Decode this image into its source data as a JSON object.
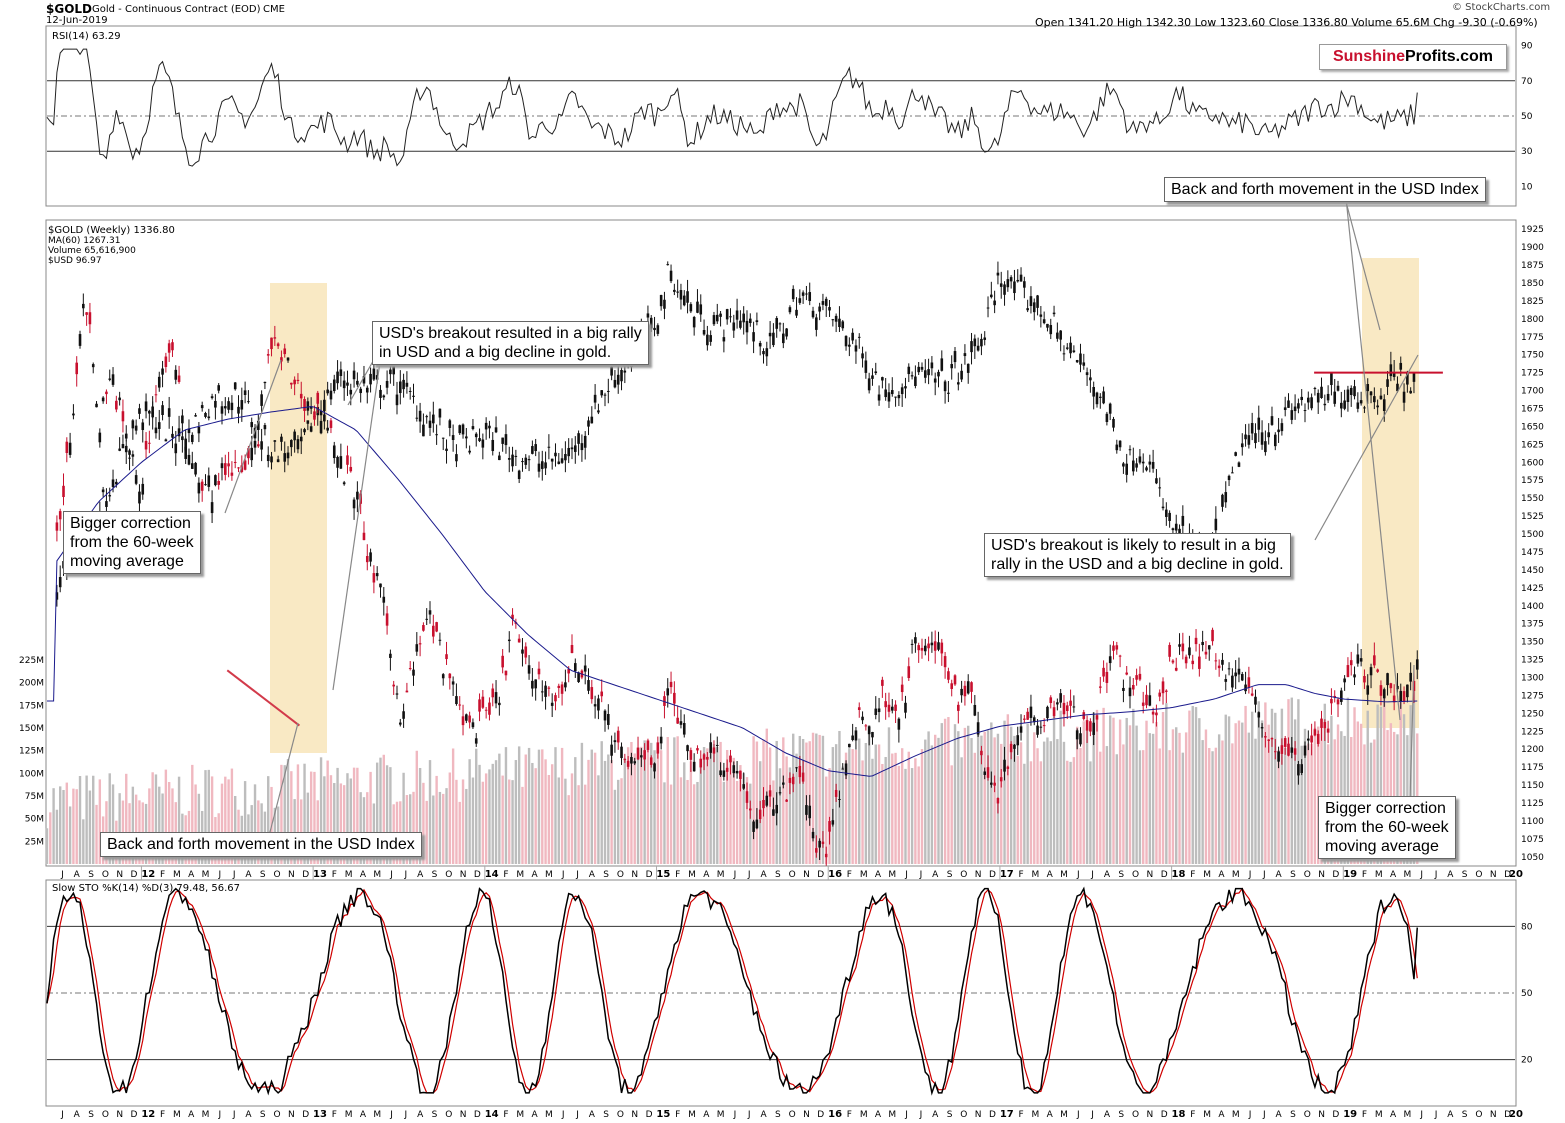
{
  "header": {
    "symbol": "$GOLD",
    "name": "Gold - Continuous Contract (EOD)",
    "exchange": "CME",
    "date": "12-Jun-2019",
    "ohlc": "Open 1341.20  High 1342.30  Low 1323.60  Close 1336.80  Volume 65.6M  Chg -9.30 (-0.69%)",
    "credit": "© StockCharts.com"
  },
  "brand": {
    "part1": "Sunshine",
    "part2": "Profits.com",
    "color1": "#c8102e"
  },
  "rsi_label": "RSI(14) 63.29",
  "legend": {
    "gold": "$GOLD (Weekly) 1336.80",
    "ma": "MA(60) 1267.31",
    "volume": "Volume 65,616,900",
    "usd": "$USD 96.97"
  },
  "sto_label": "Slow STO %K(14) %D(3) 79.48, 56.67",
  "annotations": {
    "a1": "USD's breakout resulted in a big rally\nin USD and a big decline in gold.",
    "a2": "Bigger correction\nfrom the 60-week\nmoving average",
    "a3": "Back and forth movement in the USD Index",
    "a4": "Back and forth movement in the USD Index",
    "a5": "USD's breakout is likely to result in a big\nrally in the USD and a big decline in gold.",
    "a6": "Bigger correction\nfrom the 60-week\nmoving average"
  },
  "chart_data": [
    {
      "type": "line",
      "title": "RSI(14)",
      "ylim": [
        0,
        100
      ],
      "yticks": [
        10,
        30,
        50,
        70,
        90
      ],
      "reference_lines": [
        30,
        50,
        70
      ],
      "last_value": 63.29
    },
    {
      "type": "candlestick",
      "title": "$GOLD (Weekly)",
      "ylim": [
        1040,
        1935
      ],
      "yticks": [
        1050,
        1075,
        1100,
        1125,
        1150,
        1175,
        1200,
        1225,
        1250,
        1275,
        1300,
        1325,
        1350,
        1375,
        1400,
        1425,
        1450,
        1475,
        1500,
        1525,
        1550,
        1575,
        1600,
        1625,
        1650,
        1675,
        1700,
        1725,
        1750,
        1775,
        1800,
        1825,
        1850,
        1875,
        1900,
        1925
      ],
      "volume_ticks": [
        "25M",
        "50M",
        "75M",
        "100M",
        "125M",
        "150M",
        "175M",
        "200M",
        "225M"
      ],
      "volume_ticks_value": [
        25,
        50,
        75,
        100,
        125,
        150,
        175,
        200,
        225
      ],
      "x_years": [
        "12",
        "13",
        "14",
        "15",
        "16",
        "17",
        "18",
        "19",
        "20"
      ],
      "months_2011": [
        "J",
        "A",
        "S",
        "O",
        "N",
        "D"
      ],
      "months": [
        "J",
        "F",
        "M",
        "A",
        "M",
        "J",
        "J",
        "A",
        "S",
        "O",
        "N",
        "D"
      ],
      "gold_path": [
        [
          2011.5,
          1480
        ],
        [
          2011.58,
          1620
        ],
        [
          2011.67,
          1850
        ],
        [
          2011.75,
          1650
        ],
        [
          2011.83,
          1720
        ],
        [
          2011.92,
          1620
        ],
        [
          2012.0,
          1560
        ],
        [
          2012.08,
          1700
        ],
        [
          2012.17,
          1760
        ],
        [
          2012.25,
          1650
        ],
        [
          2012.33,
          1580
        ],
        [
          2012.42,
          1560
        ],
        [
          2012.5,
          1600
        ],
        [
          2012.58,
          1580
        ],
        [
          2012.67,
          1620
        ],
        [
          2012.75,
          1770
        ],
        [
          2012.83,
          1740
        ],
        [
          2012.92,
          1700
        ],
        [
          2013.0,
          1670
        ],
        [
          2013.08,
          1670
        ],
        [
          2013.17,
          1590
        ],
        [
          2013.25,
          1560
        ],
        [
          2013.33,
          1460
        ],
        [
          2013.42,
          1390
        ],
        [
          2013.5,
          1250
        ],
        [
          2013.58,
          1310
        ],
        [
          2013.67,
          1390
        ],
        [
          2013.75,
          1330
        ],
        [
          2013.83,
          1270
        ],
        [
          2013.92,
          1230
        ],
        [
          2014.0,
          1240
        ],
        [
          2014.08,
          1270
        ],
        [
          2014.17,
          1380
        ],
        [
          2014.25,
          1300
        ],
        [
          2014.33,
          1300
        ],
        [
          2014.42,
          1260
        ],
        [
          2014.5,
          1330
        ],
        [
          2014.58,
          1300
        ],
        [
          2014.67,
          1270
        ],
        [
          2014.75,
          1210
        ],
        [
          2014.83,
          1170
        ],
        [
          2014.92,
          1200
        ],
        [
          2015.0,
          1190
        ],
        [
          2015.08,
          1290
        ],
        [
          2015.17,
          1210
        ],
        [
          2015.25,
          1190
        ],
        [
          2015.33,
          1200
        ],
        [
          2015.42,
          1180
        ],
        [
          2015.5,
          1160
        ],
        [
          2015.58,
          1090
        ],
        [
          2015.67,
          1130
        ],
        [
          2015.75,
          1140
        ],
        [
          2015.83,
          1180
        ],
        [
          2015.92,
          1070
        ],
        [
          2016.0,
          1060
        ],
        [
          2016.08,
          1160
        ],
        [
          2016.17,
          1250
        ],
        [
          2016.25,
          1230
        ],
        [
          2016.33,
          1280
        ],
        [
          2016.42,
          1250
        ],
        [
          2016.5,
          1340
        ],
        [
          2016.58,
          1340
        ],
        [
          2016.67,
          1330
        ],
        [
          2016.75,
          1270
        ],
        [
          2016.83,
          1290
        ],
        [
          2016.92,
          1170
        ],
        [
          2017.0,
          1140
        ],
        [
          2017.08,
          1220
        ],
        [
          2017.17,
          1250
        ],
        [
          2017.25,
          1250
        ],
        [
          2017.33,
          1270
        ],
        [
          2017.42,
          1260
        ],
        [
          2017.5,
          1220
        ],
        [
          2017.58,
          1270
        ],
        [
          2017.67,
          1340
        ],
        [
          2017.75,
          1280
        ],
        [
          2017.83,
          1280
        ],
        [
          2017.92,
          1250
        ],
        [
          2018.0,
          1320
        ],
        [
          2018.08,
          1340
        ],
        [
          2018.17,
          1330
        ],
        [
          2018.25,
          1340
        ],
        [
          2018.33,
          1310
        ],
        [
          2018.42,
          1300
        ],
        [
          2018.5,
          1250
        ],
        [
          2018.58,
          1210
        ],
        [
          2018.67,
          1190
        ],
        [
          2018.75,
          1190
        ],
        [
          2018.83,
          1220
        ],
        [
          2018.92,
          1240
        ],
        [
          2019.0,
          1290
        ],
        [
          2019.08,
          1320
        ],
        [
          2019.17,
          1300
        ],
        [
          2019.25,
          1290
        ],
        [
          2019.33,
          1280
        ],
        [
          2019.42,
          1290
        ],
        [
          2019.45,
          1336.8
        ]
      ],
      "ma60_path": [
        [
          2011.5,
          1460
        ],
        [
          2011.75,
          1545
        ],
        [
          2012.0,
          1600
        ],
        [
          2012.25,
          1645
        ],
        [
          2012.5,
          1660
        ],
        [
          2012.75,
          1670
        ],
        [
          2013.0,
          1678
        ],
        [
          2013.25,
          1645
        ],
        [
          2013.5,
          1575
        ],
        [
          2013.75,
          1500
        ],
        [
          2014.0,
          1420
        ],
        [
          2014.25,
          1360
        ],
        [
          2014.5,
          1310
        ],
        [
          2014.75,
          1290
        ],
        [
          2015.0,
          1270
        ],
        [
          2015.25,
          1250
        ],
        [
          2015.5,
          1230
        ],
        [
          2015.75,
          1195
        ],
        [
          2016.0,
          1170
        ],
        [
          2016.25,
          1162
        ],
        [
          2016.5,
          1190
        ],
        [
          2016.75,
          1215
        ],
        [
          2017.0,
          1232
        ],
        [
          2017.25,
          1240
        ],
        [
          2017.5,
          1248
        ],
        [
          2017.75,
          1252
        ],
        [
          2018.0,
          1258
        ],
        [
          2018.25,
          1270
        ],
        [
          2018.5,
          1290
        ],
        [
          2018.67,
          1290
        ],
        [
          2018.83,
          1278
        ],
        [
          2019.0,
          1270
        ],
        [
          2019.25,
          1266
        ],
        [
          2019.45,
          1267.31
        ]
      ],
      "usd_path": [
        [
          2011.5,
          1420
        ],
        [
          2011.75,
          1530
        ],
        [
          2012.0,
          1670
        ],
        [
          2012.25,
          1630
        ],
        [
          2012.42,
          1690
        ],
        [
          2012.58,
          1690
        ],
        [
          2012.75,
          1620
        ],
        [
          2012.92,
          1610
        ],
        [
          2013.0,
          1660
        ],
        [
          2013.17,
          1720
        ],
        [
          2013.33,
          1700
        ],
        [
          2013.5,
          1710
        ],
        [
          2013.67,
          1660
        ],
        [
          2013.83,
          1620
        ],
        [
          2014.0,
          1640
        ],
        [
          2014.17,
          1610
        ],
        [
          2014.33,
          1600
        ],
        [
          2014.5,
          1610
        ],
        [
          2014.67,
          1690
        ],
        [
          2014.83,
          1740
        ],
        [
          2015.0,
          1800
        ],
        [
          2015.08,
          1870
        ],
        [
          2015.17,
          1820
        ],
        [
          2015.33,
          1790
        ],
        [
          2015.5,
          1800
        ],
        [
          2015.67,
          1760
        ],
        [
          2015.83,
          1830
        ],
        [
          2016.0,
          1810
        ],
        [
          2016.17,
          1760
        ],
        [
          2016.33,
          1700
        ],
        [
          2016.5,
          1720
        ],
        [
          2016.67,
          1710
        ],
        [
          2016.83,
          1740
        ],
        [
          2016.92,
          1790
        ],
        [
          2017.0,
          1860
        ],
        [
          2017.08,
          1840
        ],
        [
          2017.25,
          1810
        ],
        [
          2017.42,
          1750
        ],
        [
          2017.58,
          1700
        ],
        [
          2017.67,
          1640
        ],
        [
          2017.75,
          1600
        ],
        [
          2017.83,
          1620
        ],
        [
          2017.92,
          1560
        ],
        [
          2018.0,
          1510
        ],
        [
          2018.08,
          1490
        ],
        [
          2018.17,
          1470
        ],
        [
          2018.25,
          1480
        ],
        [
          2018.33,
          1560
        ],
        [
          2018.42,
          1630
        ],
        [
          2018.58,
          1650
        ],
        [
          2018.75,
          1680
        ],
        [
          2018.92,
          1690
        ],
        [
          2019.0,
          1700
        ],
        [
          2019.17,
          1690
        ],
        [
          2019.33,
          1720
        ],
        [
          2019.42,
          1710
        ]
      ],
      "resistance_line": {
        "y": 1725,
        "from": 2018.83,
        "to": 2019.58
      },
      "trend_line": {
        "from": [
          2012.5,
          1310
        ],
        "to": [
          2012.92,
          1233
        ]
      }
    },
    {
      "type": "line",
      "title": "Slow STO %K(14) %D(3)",
      "ylim": [
        0,
        100
      ],
      "yticks": [
        20,
        50,
        80
      ],
      "reference_lines": [
        20,
        50,
        80
      ],
      "series": [
        {
          "name": "%K",
          "last_value": 79.48,
          "color": "#000000"
        },
        {
          "name": "%D",
          "last_value": 56.67,
          "color": "#d00000"
        }
      ]
    }
  ]
}
